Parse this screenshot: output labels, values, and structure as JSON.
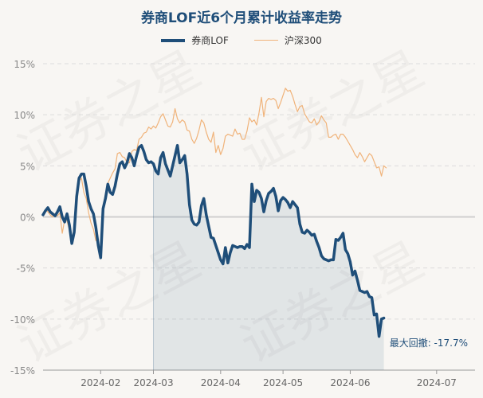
{
  "watermark_text": "证券之星",
  "chart_data": {
    "type": "line",
    "title": "券商LOF近6个月累计收益率走势",
    "xlabel": "",
    "ylabel": "",
    "ylim": [
      -15,
      15
    ],
    "yticks": [
      15,
      10,
      5,
      0,
      -5,
      -10,
      -15
    ],
    "ytick_labels": [
      "15%",
      "10%",
      "5%",
      "0%",
      "-5%",
      "-10%",
      "-15%"
    ],
    "x_range": [
      0,
      180
    ],
    "xticks": [
      {
        "x": 24,
        "label": "2024-02"
      },
      {
        "x": 46,
        "label": "2024-03"
      },
      {
        "x": 74,
        "label": "2024-04"
      },
      {
        "x": 100,
        "label": "2024-05"
      },
      {
        "x": 128,
        "label": "2024-06"
      },
      {
        "x": 164,
        "label": "2024-07"
      }
    ],
    "drawdown_start_x": 46,
    "annotation": "最大回撤: -17.7%",
    "series": [
      {
        "name": "券商LOF",
        "color": "#1f4e79",
        "points": [
          [
            0,
            0.2
          ],
          [
            1,
            0.6
          ],
          [
            2,
            0.9
          ],
          [
            3,
            0.5
          ],
          [
            4,
            0.3
          ],
          [
            5,
            0.1
          ],
          [
            6,
            0.5
          ],
          [
            7,
            1.0
          ],
          [
            8,
            0.0
          ],
          [
            9,
            -0.5
          ],
          [
            10,
            0.3
          ],
          [
            11,
            -0.8
          ],
          [
            12,
            -2.6
          ],
          [
            13,
            -1.5
          ],
          [
            14,
            2.0
          ],
          [
            15,
            3.8
          ],
          [
            16,
            4.2
          ],
          [
            17,
            4.2
          ],
          [
            18,
            3.0
          ],
          [
            19,
            1.5
          ],
          [
            20,
            0.8
          ],
          [
            21,
            0.3
          ],
          [
            22,
            -1.0
          ],
          [
            23,
            -2.8
          ],
          [
            24,
            -4.0
          ],
          [
            25,
            0.8
          ],
          [
            26,
            1.8
          ],
          [
            27,
            3.2
          ],
          [
            28,
            2.4
          ],
          [
            29,
            2.2
          ],
          [
            30,
            3.0
          ],
          [
            31,
            4.2
          ],
          [
            32,
            5.2
          ],
          [
            33,
            5.4
          ],
          [
            34,
            4.8
          ],
          [
            35,
            5.3
          ],
          [
            36,
            6.2
          ],
          [
            37,
            5.8
          ],
          [
            38,
            5.0
          ],
          [
            39,
            6.0
          ],
          [
            40,
            6.8
          ],
          [
            41,
            7.0
          ],
          [
            42,
            6.4
          ],
          [
            43,
            5.6
          ],
          [
            44,
            5.3
          ],
          [
            45,
            5.4
          ],
          [
            46,
            5.2
          ],
          [
            47,
            4.5
          ],
          [
            48,
            4.2
          ],
          [
            49,
            5.8
          ],
          [
            50,
            6.3
          ],
          [
            51,
            5.2
          ],
          [
            52,
            4.6
          ],
          [
            53,
            4.0
          ],
          [
            54,
            5.0
          ],
          [
            55,
            6.0
          ],
          [
            56,
            7.0
          ],
          [
            57,
            5.3
          ],
          [
            58,
            5.6
          ],
          [
            59,
            6.0
          ],
          [
            60,
            4.2
          ],
          [
            61,
            1.2
          ],
          [
            62,
            -0.3
          ],
          [
            63,
            -0.7
          ],
          [
            64,
            -0.8
          ],
          [
            65,
            -0.5
          ],
          [
            66,
            1.1
          ],
          [
            67,
            1.8
          ],
          [
            68,
            0.2
          ],
          [
            69,
            -0.9
          ],
          [
            70,
            -2.0
          ],
          [
            71,
            -2.1
          ],
          [
            72,
            -2.8
          ],
          [
            73,
            -3.5
          ],
          [
            74,
            -4.2
          ],
          [
            75,
            -4.6
          ],
          [
            76,
            -3.0
          ],
          [
            77,
            -4.5
          ],
          [
            78,
            -3.5
          ],
          [
            79,
            -2.8
          ],
          [
            80,
            -2.9
          ],
          [
            81,
            -3.0
          ],
          [
            82,
            -2.9
          ],
          [
            83,
            -2.9
          ],
          [
            84,
            -3.1
          ],
          [
            85,
            -2.7
          ],
          [
            86,
            -3.0
          ],
          [
            87,
            3.2
          ],
          [
            88,
            1.5
          ],
          [
            89,
            2.6
          ],
          [
            90,
            2.4
          ],
          [
            91,
            1.8
          ],
          [
            92,
            0.5
          ],
          [
            93,
            1.6
          ],
          [
            94,
            2.3
          ],
          [
            95,
            2.5
          ],
          [
            96,
            2.8
          ],
          [
            97,
            2.0
          ],
          [
            98,
            0.6
          ],
          [
            99,
            1.6
          ],
          [
            100,
            1.9
          ],
          [
            101,
            1.7
          ],
          [
            102,
            1.4
          ],
          [
            103,
            0.9
          ],
          [
            104,
            1.5
          ],
          [
            105,
            1.2
          ],
          [
            106,
            0.9
          ],
          [
            107,
            -0.7
          ],
          [
            108,
            -1.5
          ],
          [
            109,
            -1.6
          ],
          [
            110,
            -1.3
          ],
          [
            111,
            -1.5
          ],
          [
            112,
            -1.8
          ],
          [
            113,
            -1.7
          ],
          [
            114,
            -2.4
          ],
          [
            115,
            -3.0
          ],
          [
            116,
            -3.8
          ],
          [
            117,
            -4.1
          ],
          [
            118,
            -4.2
          ],
          [
            119,
            -4.3
          ],
          [
            120,
            -4.2
          ],
          [
            121,
            -4.2
          ],
          [
            122,
            -2.2
          ],
          [
            123,
            -2.3
          ],
          [
            124,
            -2.0
          ],
          [
            125,
            -1.6
          ],
          [
            126,
            -3.2
          ],
          [
            127,
            -3.6
          ],
          [
            128,
            -4.4
          ],
          [
            129,
            -5.7
          ],
          [
            130,
            -5.3
          ],
          [
            131,
            -6.2
          ],
          [
            132,
            -7.2
          ],
          [
            133,
            -7.3
          ],
          [
            134,
            -7.4
          ],
          [
            135,
            -7.3
          ],
          [
            136,
            -7.8
          ],
          [
            137,
            -7.9
          ],
          [
            138,
            -9.6
          ],
          [
            139,
            -9.5
          ],
          [
            140,
            -11.7
          ],
          [
            141,
            -10.0
          ],
          [
            142,
            -9.9
          ]
        ]
      },
      {
        "name": "沪深300",
        "color": "#f0b37a",
        "points": [
          [
            0,
            0.2
          ],
          [
            1,
            0.7
          ],
          [
            2,
            0.5
          ],
          [
            3,
            0.2
          ],
          [
            4,
            0.0
          ],
          [
            5,
            0.3
          ],
          [
            6,
            0.1
          ],
          [
            7,
            0.4
          ],
          [
            8,
            -1.6
          ],
          [
            9,
            -0.3
          ],
          [
            10,
            -0.4
          ],
          [
            11,
            -1.3
          ],
          [
            12,
            -2.3
          ],
          [
            13,
            -1.0
          ],
          [
            14,
            2.5
          ],
          [
            15,
            3.5
          ],
          [
            16,
            3.8
          ],
          [
            17,
            2.4
          ],
          [
            18,
            1.8
          ],
          [
            19,
            0.4
          ],
          [
            20,
            -0.6
          ],
          [
            21,
            -1.2
          ],
          [
            22,
            -2.3
          ],
          [
            23,
            -2.5
          ],
          [
            24,
            -3.4
          ],
          [
            25,
            1.1
          ],
          [
            26,
            2.2
          ],
          [
            27,
            3.3
          ],
          [
            28,
            3.8
          ],
          [
            29,
            4.3
          ],
          [
            30,
            4.7
          ],
          [
            31,
            6.2
          ],
          [
            32,
            6.3
          ],
          [
            33,
            5.9
          ],
          [
            34,
            5.8
          ],
          [
            35,
            5.3
          ],
          [
            36,
            5.3
          ],
          [
            37,
            6.4
          ],
          [
            38,
            6.6
          ],
          [
            39,
            6.5
          ],
          [
            40,
            7.6
          ],
          [
            41,
            7.8
          ],
          [
            42,
            8.2
          ],
          [
            43,
            8.3
          ],
          [
            44,
            8.8
          ],
          [
            45,
            8.6
          ],
          [
            46,
            8.9
          ],
          [
            47,
            8.7
          ],
          [
            48,
            9.2
          ],
          [
            49,
            9.8
          ],
          [
            50,
            10.1
          ],
          [
            51,
            9.5
          ],
          [
            52,
            8.9
          ],
          [
            53,
            8.8
          ],
          [
            54,
            9.3
          ],
          [
            55,
            10.6
          ],
          [
            56,
            9.6
          ],
          [
            57,
            9.2
          ],
          [
            58,
            9.5
          ],
          [
            59,
            9.3
          ],
          [
            60,
            8.5
          ],
          [
            61,
            8.4
          ],
          [
            62,
            7.6
          ],
          [
            63,
            7.2
          ],
          [
            64,
            7.7
          ],
          [
            65,
            8.5
          ],
          [
            66,
            9.5
          ],
          [
            67,
            9.2
          ],
          [
            68,
            8.3
          ],
          [
            69,
            7.6
          ],
          [
            70,
            7.3
          ],
          [
            71,
            8.3
          ],
          [
            72,
            6.3
          ],
          [
            73,
            7.0
          ],
          [
            74,
            6.1
          ],
          [
            75,
            6.7
          ],
          [
            76,
            7.9
          ],
          [
            77,
            8.1
          ],
          [
            78,
            8.0
          ],
          [
            79,
            7.9
          ],
          [
            80,
            8.6
          ],
          [
            81,
            8.1
          ],
          [
            82,
            8.2
          ],
          [
            83,
            7.6
          ],
          [
            84,
            7.6
          ],
          [
            85,
            8.4
          ],
          [
            86,
            9.7
          ],
          [
            87,
            9.3
          ],
          [
            88,
            9.5
          ],
          [
            89,
            9.0
          ],
          [
            90,
            10.2
          ],
          [
            91,
            11.7
          ],
          [
            92,
            9.8
          ],
          [
            93,
            11.3
          ],
          [
            94,
            11.6
          ],
          [
            95,
            11.5
          ],
          [
            96,
            11.6
          ],
          [
            97,
            11.4
          ],
          [
            98,
            10.6
          ],
          [
            99,
            11.2
          ],
          [
            100,
            11.9
          ],
          [
            101,
            12.6
          ],
          [
            102,
            12.3
          ],
          [
            103,
            12.4
          ],
          [
            104,
            11.8
          ],
          [
            105,
            11.0
          ],
          [
            106,
            10.3
          ],
          [
            107,
            10.8
          ],
          [
            108,
            10.9
          ],
          [
            109,
            10.1
          ],
          [
            110,
            9.7
          ],
          [
            111,
            9.3
          ],
          [
            112,
            9.2
          ],
          [
            113,
            9.6
          ],
          [
            114,
            9.0
          ],
          [
            115,
            9.3
          ],
          [
            116,
            9.9
          ],
          [
            117,
            9.5
          ],
          [
            118,
            9.2
          ],
          [
            119,
            7.8
          ],
          [
            120,
            7.8
          ],
          [
            121,
            8.0
          ],
          [
            122,
            8.1
          ],
          [
            123,
            7.6
          ],
          [
            124,
            8.1
          ],
          [
            125,
            8.1
          ],
          [
            126,
            7.8
          ],
          [
            127,
            7.4
          ],
          [
            128,
            7.0
          ],
          [
            129,
            6.6
          ],
          [
            130,
            6.1
          ],
          [
            131,
            5.8
          ],
          [
            132,
            6.3
          ],
          [
            133,
            5.9
          ],
          [
            134,
            5.4
          ],
          [
            135,
            5.8
          ],
          [
            136,
            6.2
          ],
          [
            137,
            6.0
          ],
          [
            138,
            5.4
          ],
          [
            139,
            4.8
          ],
          [
            140,
            4.9
          ],
          [
            141,
            4.0
          ],
          [
            142,
            5.0
          ],
          [
            143,
            4.8
          ]
        ]
      }
    ]
  }
}
